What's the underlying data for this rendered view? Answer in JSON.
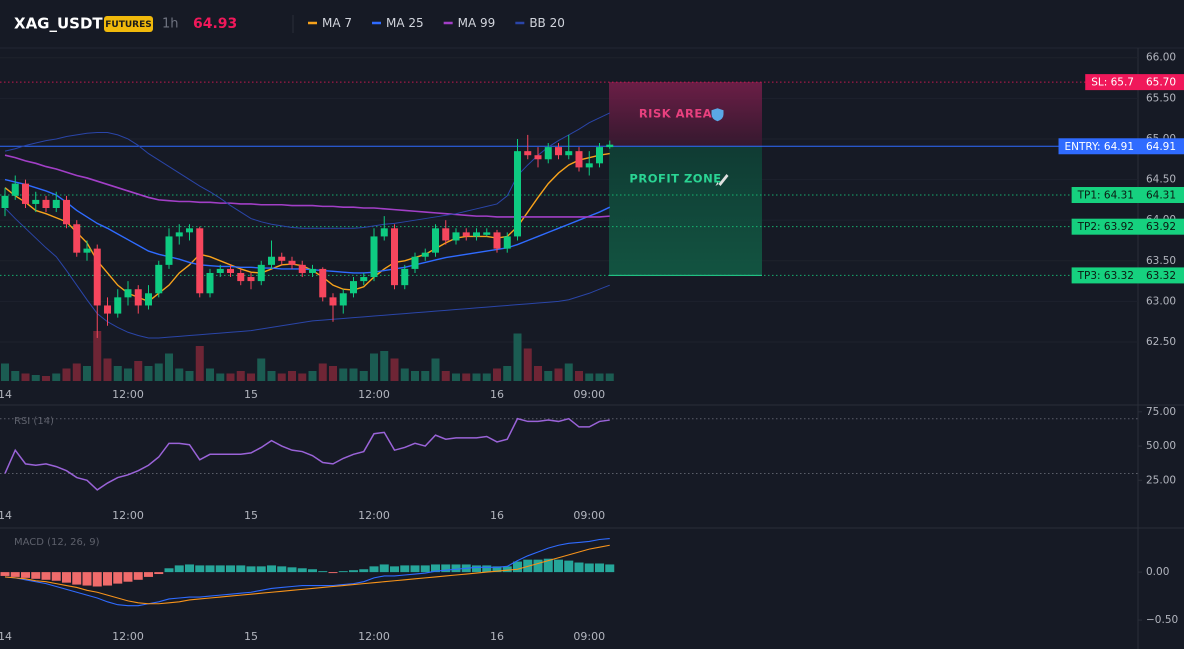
{
  "header": {
    "symbol": "XAG_USDT",
    "badge": "FUTURES",
    "interval": "1h",
    "price": 64.93
  },
  "chart_data": [
    {
      "type": "candlestick",
      "categories": [
        "14",
        null,
        null,
        null,
        null,
        null,
        null,
        null,
        null,
        null,
        null,
        null,
        "12:00",
        null,
        null,
        null,
        null,
        null,
        null,
        null,
        null,
        null,
        null,
        null,
        "15",
        null,
        null,
        null,
        null,
        null,
        null,
        null,
        null,
        null,
        null,
        null,
        "12:00",
        null,
        null,
        null,
        null,
        null,
        null,
        null,
        null,
        null,
        null,
        null,
        "16",
        null,
        null,
        null,
        null,
        null,
        null,
        null,
        null,
        "09:00",
        null,
        null
      ],
      "open": [
        64.15,
        64.3,
        64.45,
        64.2,
        64.25,
        64.15,
        64.25,
        63.95,
        63.6,
        63.65,
        62.95,
        62.85,
        63.05,
        63.15,
        62.95,
        63.1,
        63.45,
        63.8,
        63.85,
        63.9,
        63.1,
        63.35,
        63.4,
        63.35,
        63.3,
        63.25,
        63.45,
        63.55,
        63.5,
        63.45,
        63.35,
        63.4,
        63.05,
        62.95,
        63.1,
        63.25,
        63.3,
        63.8,
        63.9,
        63.2,
        63.4,
        63.55,
        63.6,
        63.9,
        63.75,
        63.85,
        63.8,
        63.82,
        63.85,
        63.65,
        63.8,
        64.85,
        64.8,
        64.75,
        64.9,
        64.8,
        64.85,
        64.65,
        64.7,
        64.9
      ],
      "high": [
        64.4,
        64.55,
        64.5,
        64.35,
        64.3,
        64.35,
        64.3,
        64.0,
        63.75,
        63.7,
        63.05,
        63.15,
        63.25,
        63.2,
        63.2,
        63.5,
        63.9,
        63.95,
        63.95,
        63.92,
        63.4,
        63.45,
        63.45,
        63.4,
        63.35,
        63.5,
        63.75,
        63.6,
        63.55,
        63.5,
        63.45,
        63.42,
        63.1,
        63.15,
        63.3,
        63.35,
        63.9,
        64.05,
        63.95,
        63.45,
        63.6,
        63.65,
        63.95,
        64.0,
        63.9,
        63.9,
        63.9,
        63.9,
        63.88,
        63.85,
        65.0,
        65.05,
        64.9,
        64.95,
        64.95,
        65.05,
        64.9,
        64.85,
        64.95,
        64.98
      ],
      "low": [
        64.05,
        64.25,
        64.15,
        64.1,
        64.1,
        64.1,
        63.9,
        63.55,
        63.5,
        62.55,
        62.7,
        62.8,
        62.95,
        62.85,
        62.9,
        63.05,
        63.4,
        63.7,
        63.75,
        63.05,
        63.05,
        63.3,
        63.3,
        63.2,
        63.15,
        63.2,
        63.4,
        63.45,
        63.4,
        63.3,
        63.3,
        63.0,
        62.75,
        62.85,
        63.05,
        63.2,
        63.25,
        63.75,
        63.15,
        63.15,
        63.35,
        63.5,
        63.55,
        63.7,
        63.7,
        63.75,
        63.75,
        63.8,
        63.6,
        63.6,
        63.75,
        64.75,
        64.65,
        64.7,
        64.75,
        64.75,
        64.6,
        64.55,
        64.65,
        64.88
      ],
      "close": [
        64.3,
        64.45,
        64.2,
        64.25,
        64.15,
        64.25,
        63.95,
        63.6,
        63.65,
        62.95,
        62.85,
        63.05,
        63.15,
        62.95,
        63.1,
        63.45,
        63.8,
        63.85,
        63.9,
        63.1,
        63.35,
        63.4,
        63.35,
        63.25,
        63.25,
        63.45,
        63.55,
        63.5,
        63.45,
        63.35,
        63.4,
        63.05,
        62.95,
        63.1,
        63.25,
        63.3,
        63.8,
        63.9,
        63.2,
        63.4,
        63.55,
        63.6,
        63.9,
        63.75,
        63.85,
        63.8,
        63.85,
        63.85,
        63.65,
        63.8,
        64.85,
        64.8,
        64.75,
        64.9,
        64.8,
        64.85,
        64.65,
        64.7,
        64.9,
        64.93
      ],
      "volume": [
        35,
        20,
        15,
        12,
        10,
        15,
        25,
        35,
        30,
        100,
        45,
        30,
        25,
        40,
        30,
        35,
        55,
        25,
        20,
        70,
        25,
        15,
        15,
        20,
        15,
        45,
        20,
        15,
        20,
        15,
        20,
        35,
        30,
        25,
        25,
        20,
        55,
        60,
        45,
        25,
        20,
        20,
        45,
        20,
        15,
        15,
        15,
        15,
        25,
        30,
        95,
        65,
        30,
        20,
        25,
        35,
        20,
        15,
        15,
        15
      ],
      "up_color": "#0ecb81",
      "down_color": "#f6465d",
      "volume_up_color": "#1b5c52",
      "volume_down_color": "#6e2535",
      "series": [
        {
          "name": "MA 7",
          "color": "#f7a21b",
          "values": [
            64.4,
            64.3,
            64.22,
            64.12,
            64.08,
            64.03,
            63.98,
            63.85,
            63.72,
            63.5,
            63.35,
            63.2,
            63.1,
            63.05,
            63.0,
            63.1,
            63.2,
            63.35,
            63.45,
            63.58,
            63.55,
            63.5,
            63.45,
            63.4,
            63.36,
            63.35,
            63.4,
            63.45,
            63.46,
            63.44,
            63.38,
            63.3,
            63.2,
            63.15,
            63.14,
            63.18,
            63.3,
            63.4,
            63.48,
            63.5,
            63.54,
            63.58,
            63.65,
            63.72,
            63.78,
            63.8,
            63.8,
            63.8,
            63.78,
            63.8,
            63.92,
            64.1,
            64.28,
            64.45,
            64.58,
            64.68,
            64.74,
            64.77,
            64.8,
            64.82
          ]
        },
        {
          "name": "MA 25",
          "color": "#2f6bff",
          "values": [
            64.5,
            64.47,
            64.44,
            64.4,
            64.36,
            64.31,
            64.22,
            64.12,
            64.04,
            63.96,
            63.9,
            63.83,
            63.76,
            63.69,
            63.62,
            63.58,
            63.55,
            63.52,
            63.48,
            63.45,
            63.44,
            63.43,
            63.43,
            63.42,
            63.42,
            63.41,
            63.41,
            63.4,
            63.4,
            63.4,
            63.39,
            63.38,
            63.37,
            63.36,
            63.35,
            63.35,
            63.36,
            63.38,
            63.4,
            63.42,
            63.45,
            63.48,
            63.51,
            63.54,
            63.56,
            63.58,
            63.6,
            63.62,
            63.64,
            63.66,
            63.7,
            63.75,
            63.8,
            63.85,
            63.9,
            63.95,
            64.0,
            64.05,
            64.1,
            64.16
          ]
        },
        {
          "name": "MA 99",
          "color": "#a23fc7",
          "values": [
            64.8,
            64.77,
            64.73,
            64.7,
            64.66,
            64.63,
            64.59,
            64.55,
            64.52,
            64.48,
            64.44,
            64.4,
            64.36,
            64.32,
            64.28,
            64.25,
            64.24,
            64.23,
            64.23,
            64.22,
            64.22,
            64.21,
            64.21,
            64.2,
            64.2,
            64.19,
            64.19,
            64.19,
            64.18,
            64.18,
            64.18,
            64.17,
            64.17,
            64.16,
            64.16,
            64.15,
            64.15,
            64.14,
            64.13,
            64.12,
            64.11,
            64.1,
            64.09,
            64.08,
            64.07,
            64.06,
            64.05,
            64.05,
            64.04,
            64.04,
            64.04,
            64.04,
            64.04,
            64.04,
            64.04,
            64.04,
            64.04,
            64.04,
            64.04,
            64.05
          ]
        },
        {
          "name": "BB 20",
          "color": "#2a45a8",
          "upper": [
            64.85,
            64.88,
            64.92,
            64.95,
            64.98,
            65.0,
            65.03,
            65.05,
            65.07,
            65.08,
            65.08,
            65.05,
            65.0,
            64.92,
            64.82,
            64.74,
            64.66,
            64.58,
            64.5,
            64.42,
            64.35,
            64.27,
            64.18,
            64.1,
            64.02,
            63.98,
            63.95,
            63.93,
            63.91,
            63.9,
            63.9,
            63.9,
            63.9,
            63.9,
            63.9,
            63.91,
            63.93,
            63.95,
            63.96,
            63.98,
            64.0,
            64.02,
            64.04,
            64.06,
            64.08,
            64.11,
            64.14,
            64.17,
            64.2,
            64.3,
            64.55,
            64.68,
            64.8,
            64.9,
            64.98,
            65.05,
            65.12,
            65.2,
            65.26,
            65.32
          ],
          "lower": [
            64.15,
            64.02,
            63.9,
            63.78,
            63.66,
            63.55,
            63.38,
            63.2,
            63.02,
            62.85,
            62.75,
            62.68,
            62.62,
            62.58,
            62.55,
            62.55,
            62.56,
            62.57,
            62.58,
            62.59,
            62.6,
            62.61,
            62.62,
            62.63,
            62.64,
            62.66,
            62.68,
            62.7,
            62.72,
            62.74,
            62.76,
            62.77,
            62.78,
            62.79,
            62.8,
            62.81,
            62.82,
            62.83,
            62.84,
            62.85,
            62.86,
            62.87,
            62.88,
            62.89,
            62.9,
            62.91,
            62.92,
            62.93,
            62.94,
            62.95,
            62.96,
            62.97,
            62.98,
            62.99,
            63.0,
            63.02,
            63.06,
            63.1,
            63.15,
            63.2
          ]
        }
      ],
      "ylim": [
        62.02,
        66.12
      ],
      "yticks": [
        {
          "value": 66,
          "label": "66.00"
        },
        {
          "value": 65.5,
          "label": "65.50"
        },
        {
          "value": 65,
          "label": "65.00"
        },
        {
          "value": 64.5,
          "label": "64.50"
        },
        {
          "value": 64,
          "label": "64.00"
        },
        {
          "value": 63.5,
          "label": "63.50"
        },
        {
          "value": 63,
          "label": "63.00"
        },
        {
          "value": 62.5,
          "label": "62.50"
        }
      ],
      "grid": true,
      "levels": [
        {
          "name": "SL: 65.7",
          "value": 65.7,
          "label": "65.70",
          "color": "#f0185a",
          "text_color": "#ffffff",
          "style": "dotted"
        },
        {
          "name": "ENTRY: 64.91",
          "value": 64.91,
          "label": "64.91",
          "color": "#2f6bff",
          "text_color": "#ffffff",
          "style": "solid"
        },
        {
          "name": "TP1: 64.31",
          "value": 64.31,
          "label": "64.31",
          "color": "#16d17f",
          "text_color": "#0b1a12",
          "style": "dotted"
        },
        {
          "name": "TP2: 63.92",
          "value": 63.92,
          "label": "63.92",
          "color": "#16d17f",
          "text_color": "#0b1a12",
          "style": "dotted"
        },
        {
          "name": "TP3: 63.32",
          "value": 63.32,
          "label": "63.32",
          "color": "#16d17f",
          "text_color": "#0b1a12",
          "style": "dotted"
        }
      ],
      "zones": [
        {
          "label": "RISK AREA",
          "color": "#e8407e"
        },
        {
          "label": "PROFIT ZONE",
          "color": "#2ad493"
        }
      ]
    },
    {
      "type": "line",
      "title": "RSI (14)",
      "series": [
        {
          "name": "RSI",
          "color": "#9a63d8",
          "values": [
            30,
            47,
            37,
            36,
            37,
            35,
            32,
            27,
            25,
            18,
            23,
            27,
            29,
            32,
            36,
            42,
            52,
            52,
            51,
            40,
            44,
            44,
            44,
            44,
            45,
            49,
            54,
            50,
            47,
            46,
            43,
            38,
            37,
            41,
            44,
            46,
            59,
            60,
            47,
            49,
            52,
            50,
            58,
            55,
            56,
            56,
            56,
            57,
            53,
            55,
            70,
            68,
            68,
            69,
            68,
            70,
            64,
            64,
            68,
            69
          ]
        }
      ],
      "bands": [
        30,
        70
      ],
      "ylim": [
        -4,
        80
      ],
      "yticks": [
        {
          "value": 75,
          "label": "75.00"
        },
        {
          "value": 50,
          "label": "50.00"
        },
        {
          "value": 25,
          "label": "25.00"
        }
      ]
    },
    {
      "type": "macd",
      "title": "MACD (12, 26, 9)",
      "histogram": [
        -0.04,
        -0.05,
        -0.06,
        -0.07,
        -0.08,
        -0.09,
        -0.11,
        -0.13,
        -0.14,
        -0.15,
        -0.14,
        -0.12,
        -0.1,
        -0.08,
        -0.05,
        -0.02,
        0.04,
        0.07,
        0.08,
        0.07,
        0.07,
        0.07,
        0.07,
        0.07,
        0.06,
        0.06,
        0.07,
        0.06,
        0.05,
        0.04,
        0.03,
        0.01,
        -0.01,
        0.01,
        0.02,
        0.03,
        0.06,
        0.08,
        0.06,
        0.07,
        0.07,
        0.07,
        0.08,
        0.08,
        0.08,
        0.08,
        0.07,
        0.07,
        0.06,
        0.06,
        0.11,
        0.13,
        0.13,
        0.14,
        0.13,
        0.12,
        0.1,
        0.09,
        0.09,
        0.08
      ],
      "up_color": "#26a69a",
      "down_color": "#ef6b6b",
      "series": [
        {
          "name": "MACD",
          "color": "#2f6bff",
          "values": [
            -0.05,
            -0.06,
            -0.08,
            -0.1,
            -0.12,
            -0.15,
            -0.18,
            -0.21,
            -0.24,
            -0.27,
            -0.31,
            -0.34,
            -0.35,
            -0.35,
            -0.33,
            -0.31,
            -0.28,
            -0.27,
            -0.26,
            -0.26,
            -0.25,
            -0.24,
            -0.23,
            -0.22,
            -0.21,
            -0.19,
            -0.17,
            -0.16,
            -0.15,
            -0.14,
            -0.14,
            -0.14,
            -0.14,
            -0.13,
            -0.12,
            -0.1,
            -0.06,
            -0.04,
            -0.04,
            -0.03,
            -0.02,
            -0.01,
            0.01,
            0.02,
            0.03,
            0.04,
            0.05,
            0.05,
            0.05,
            0.06,
            0.12,
            0.17,
            0.21,
            0.25,
            0.28,
            0.3,
            0.31,
            0.32,
            0.34,
            0.35
          ]
        },
        {
          "name": "Signal",
          "color": "#f7931a",
          "values": [
            -0.05,
            -0.06,
            -0.07,
            -0.09,
            -0.1,
            -0.12,
            -0.14,
            -0.16,
            -0.19,
            -0.21,
            -0.24,
            -0.27,
            -0.3,
            -0.32,
            -0.33,
            -0.33,
            -0.32,
            -0.31,
            -0.29,
            -0.28,
            -0.27,
            -0.26,
            -0.25,
            -0.24,
            -0.23,
            -0.22,
            -0.21,
            -0.2,
            -0.19,
            -0.18,
            -0.17,
            -0.16,
            -0.15,
            -0.14,
            -0.13,
            -0.12,
            -0.11,
            -0.1,
            -0.09,
            -0.08,
            -0.07,
            -0.06,
            -0.05,
            -0.04,
            -0.03,
            -0.02,
            -0.01,
            0,
            0.01,
            0.02,
            0.03,
            0.06,
            0.09,
            0.12,
            0.15,
            0.18,
            0.21,
            0.24,
            0.26,
            0.28
          ]
        }
      ],
      "ylim": [
        -0.76,
        0.46
      ],
      "yticks": [
        {
          "value": 0,
          "label": "0.00"
        },
        {
          "value": -0.5,
          "label": "−0.50"
        }
      ]
    }
  ]
}
